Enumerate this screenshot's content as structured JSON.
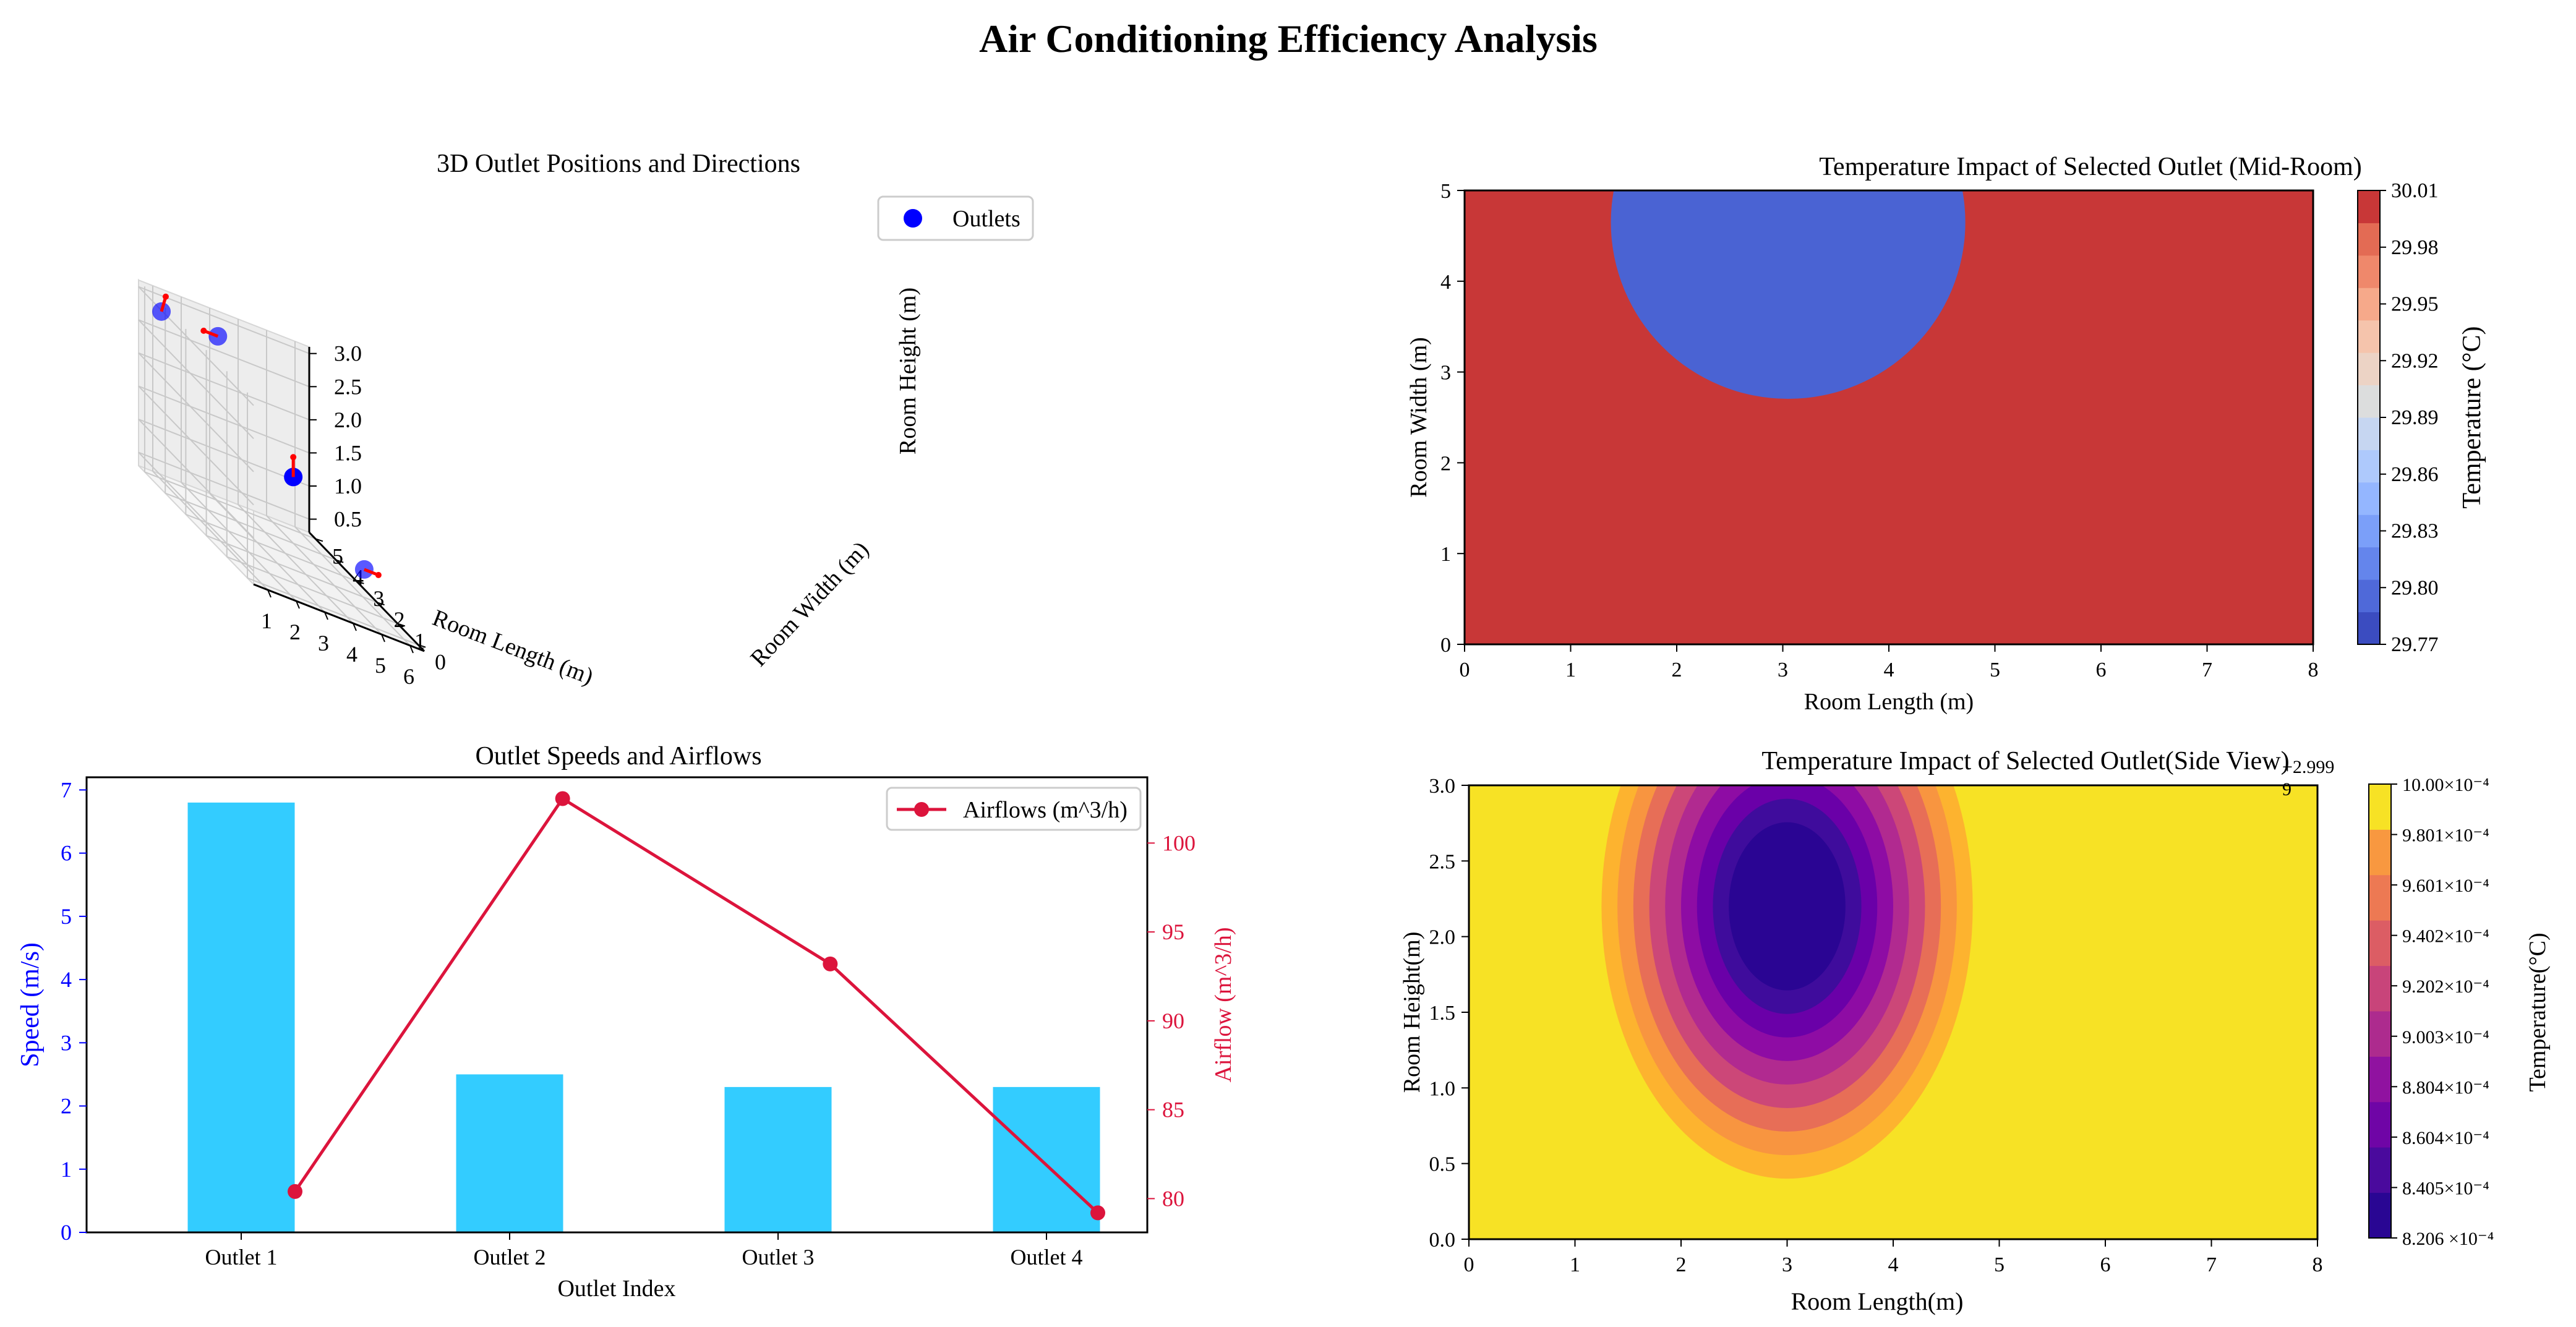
{
  "page": {
    "title": "Air Conditioning Efficiency Analysis"
  },
  "colors": {
    "outlet_marker": "#0000ff",
    "direction_arrow": "#ff0000",
    "speed_bar": "#33ccff",
    "speed_axis": "#0000ff",
    "airflow_line": "#dc143c",
    "hot": "#c83737",
    "cold": "#3b4cc0"
  },
  "chart_data": [
    {
      "id": "outlet3d",
      "type": "scatter",
      "title": "3D Outlet Positions and Directions",
      "xlabel": "Room Length (m)",
      "ylabel": "Room Width (m)",
      "zlabel": "Room Height (m)",
      "x_ticks": [
        "1",
        "2",
        "3",
        "4",
        "5",
        "6"
      ],
      "y_ticks": [
        "0",
        "1",
        "2",
        "3",
        "4",
        "5"
      ],
      "z_ticks": [
        "0.5",
        "1.0",
        "1.5",
        "2.0",
        "2.5",
        "3.0"
      ],
      "xlim": [
        0.5,
        6.5
      ],
      "ylim": [
        -0.3,
        5.3
      ],
      "zlim": [
        0.3,
        3.1
      ],
      "legend": [
        "Outlets"
      ],
      "legend_position": "top-right",
      "grid": true,
      "points": [
        {
          "x": 0.8,
          "y": 4.6,
          "z": 2.9,
          "dx": 0.15,
          "dy": 0.0,
          "dz": 0.25
        },
        {
          "x": 3.0,
          "y": 4.9,
          "z": 2.8,
          "dx": -0.5,
          "dy": 0.0,
          "dz": 0.0
        },
        {
          "x": 5.0,
          "y": 4.0,
          "z": 1.3,
          "dx": 0.0,
          "dy": 0.0,
          "dz": 0.3
        },
        {
          "x": 5.4,
          "y": 1.1,
          "z": 0.9,
          "dx": 0.5,
          "dy": 0.0,
          "dz": 0.0
        }
      ]
    },
    {
      "id": "midroom",
      "type": "heatmap",
      "title": "Temperature Impact of Selected Outlet (Mid-Room)",
      "xlabel": "Room Length (m)",
      "ylabel": "Room Width (m)",
      "xlim": [
        0,
        8
      ],
      "ylim": [
        0,
        5
      ],
      "x_ticks": [
        "0",
        "1",
        "2",
        "3",
        "4",
        "5",
        "6",
        "7",
        "8"
      ],
      "y_ticks": [
        "0",
        "1",
        "2",
        "3",
        "4",
        "5"
      ],
      "center": [
        3.05,
        4.65
      ],
      "radius_x": [
        1.35,
        1.7
      ],
      "radius_y": [
        1.35,
        2.0
      ],
      "colorbar_label": "Temperature (°C)",
      "colorbar_ticks": [
        "29.77",
        "29.80",
        "29.83",
        "29.86",
        "29.89",
        "29.92",
        "29.95",
        "29.98",
        "30.01"
      ],
      "colorbar_colors": [
        "#3b4cc0",
        "#4f69d9",
        "#6485ec",
        "#7b9ff9",
        "#94b6ff",
        "#aec9fc",
        "#c6d6f1",
        "#dcdddd",
        "#ecd3c5",
        "#f5c4ac",
        "#f6a98a",
        "#ef886b",
        "#e36b54",
        "#c83737"
      ],
      "contour_colors": [
        "#c83737",
        "#e36b54",
        "#f29274",
        "#f5b094",
        "#f3c8b4",
        "#e8d5cd",
        "#d6dce4",
        "#c3d4f3",
        "#a9c5fb",
        "#8db0fe",
        "#7093f3",
        "#5976e1",
        "#4a63d3"
      ]
    },
    {
      "id": "speeds",
      "type": "bar",
      "title": "Outlet Speeds and Airflows",
      "categories": [
        "Outlet 1",
        "Outlet 2",
        "Outlet 3",
        "Outlet 4"
      ],
      "xlabel": "Outlet Index",
      "ylabel": "Speed (m/s)",
      "ylabel_right": "Airflow (m^3/h)",
      "ylim": [
        0,
        7.2
      ],
      "ylim_right": [
        78.1,
        103.7
      ],
      "y_ticks": [
        "0",
        "1",
        "2",
        "3",
        "4",
        "5",
        "6",
        "7"
      ],
      "y_ticks_right": [
        "80",
        "85",
        "90",
        "95",
        "100"
      ],
      "series": [
        {
          "name": "Speed",
          "values": [
            6.8,
            2.5,
            2.3,
            2.3
          ]
        },
        {
          "name": "Airflows (m^3/h)",
          "values": [
            80.4,
            102.5,
            93.2,
            79.2
          ]
        }
      ],
      "legend": [
        "Airflows (m^3/h)"
      ],
      "legend_position": "top-right"
    },
    {
      "id": "sideview",
      "type": "heatmap",
      "title": "Temperature Impact of Selected Outlet(Side View)",
      "xlabel": "Room Length(m)",
      "ylabel": "Room Height(m)",
      "xlim": [
        0,
        8
      ],
      "ylim": [
        0,
        3
      ],
      "x_ticks": [
        "0",
        "1",
        "2",
        "3",
        "4",
        "5",
        "6",
        "7",
        "8"
      ],
      "y_ticks": [
        "0.0",
        "0.5",
        "1.0",
        "1.5",
        "2.0",
        "2.5",
        "3.0"
      ],
      "center": [
        3.0,
        2.2
      ],
      "radius_x": [
        1.75,
        0.4
      ],
      "radius_y": [
        1.8,
        0.4
      ],
      "offset_text": "+2.999\n9",
      "colorbar_label": "Temperature(°C)",
      "colorbar_ticks": [
        "8.206 ×10⁻⁴",
        "8.405×10⁻⁴",
        "8.604×10⁻⁴",
        "8.804×10⁻⁴",
        "9.003×10⁻⁴",
        "9.202×10⁻⁴",
        "9.402×10⁻⁴",
        "9.601×10⁻⁴",
        "9.801×10⁻⁴",
        "10.00×10⁻⁴"
      ],
      "colorbar_colors": [
        "#290693",
        "#4a0a9d",
        "#6f05a6",
        "#9012a0",
        "#ad2b8e",
        "#c8447a",
        "#dc5d64",
        "#ed7953",
        "#f89840",
        "#f7e225"
      ],
      "contour_colors": [
        "#f7e225",
        "#fdb32f",
        "#f89540",
        "#e76e57",
        "#cc4778",
        "#b12a90",
        "#8e0ca4",
        "#6a00a8",
        "#3f0c9c",
        "#2a0593"
      ]
    }
  ]
}
